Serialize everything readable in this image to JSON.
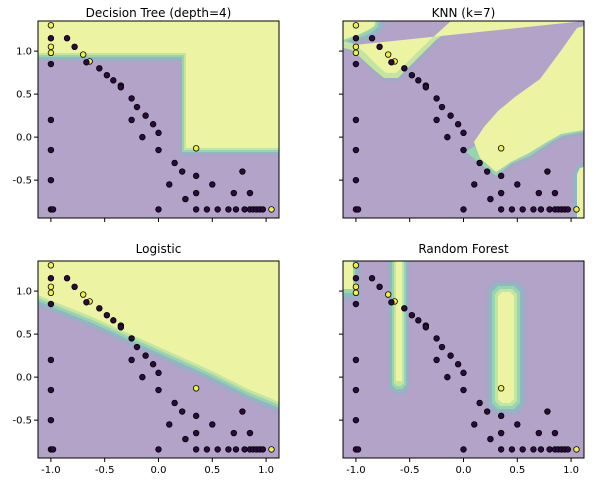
{
  "chart_data": [
    {
      "type": "scatter",
      "title": "Decision Tree (depth=4)",
      "xlim": [
        -1.12,
        1.12
      ],
      "ylim": [
        -0.94,
        1.35
      ],
      "xticks": [
        "-1.0",
        "-0.5",
        "0.0",
        "0.5",
        "1.0"
      ],
      "yticks": [
        "1.0",
        "0.5",
        "0.0",
        "-0.5"
      ],
      "show_xticklabels": false,
      "show_yticklabels": true
    },
    {
      "type": "scatter",
      "title": "KNN (k=7)",
      "xlim": [
        -1.12,
        1.12
      ],
      "ylim": [
        -0.94,
        1.35
      ],
      "xticks": [
        "-1.0",
        "-0.5",
        "0.0",
        "0.5",
        "1.0"
      ],
      "yticks": [
        "1.0",
        "0.5",
        "0.0",
        "-0.5"
      ],
      "show_xticklabels": false,
      "show_yticklabels": false
    },
    {
      "type": "scatter",
      "title": "Logistic",
      "xlim": [
        -1.12,
        1.12
      ],
      "ylim": [
        -0.94,
        1.35
      ],
      "xticks": [
        "-1.0",
        "-0.5",
        "0.0",
        "0.5",
        "1.0"
      ],
      "yticks": [
        "1.0",
        "0.5",
        "0.0",
        "-0.5"
      ],
      "show_xticklabels": true,
      "show_yticklabels": true
    },
    {
      "type": "scatter",
      "title": "Random Forest",
      "xlim": [
        -1.12,
        1.12
      ],
      "ylim": [
        -0.94,
        1.35
      ],
      "xticks": [
        "-1.0",
        "-0.5",
        "0.0",
        "0.5",
        "1.0"
      ],
      "yticks": [
        "1.0",
        "0.5",
        "0.0",
        "-0.5"
      ],
      "show_xticklabels": true,
      "show_yticklabels": false
    }
  ],
  "points": [
    {
      "x": -1.0,
      "y": 1.3,
      "c": 1
    },
    {
      "x": -1.0,
      "y": 1.05,
      "c": 1
    },
    {
      "x": -1.0,
      "y": 0.98,
      "c": 1
    },
    {
      "x": -1.0,
      "y": 1.15,
      "c": 0
    },
    {
      "x": -1.0,
      "y": 0.85,
      "c": 0
    },
    {
      "x": -1.0,
      "y": 0.2,
      "c": 0
    },
    {
      "x": -1.0,
      "y": -0.15,
      "c": 0
    },
    {
      "x": -1.0,
      "y": -0.5,
      "c": 0
    },
    {
      "x": -1.0,
      "y": -0.84,
      "c": 0
    },
    {
      "x": -0.98,
      "y": -0.84,
      "c": 0
    },
    {
      "x": -0.85,
      "y": 1.15,
      "c": 0
    },
    {
      "x": -0.78,
      "y": 1.05,
      "c": 0
    },
    {
      "x": -0.7,
      "y": 0.96,
      "c": 1
    },
    {
      "x": -0.64,
      "y": 0.88,
      "c": 1
    },
    {
      "x": -0.67,
      "y": 0.87,
      "c": 0
    },
    {
      "x": -0.55,
      "y": 0.8,
      "c": 0
    },
    {
      "x": -0.48,
      "y": 0.72,
      "c": 0
    },
    {
      "x": -0.42,
      "y": 0.66,
      "c": 0
    },
    {
      "x": -0.35,
      "y": 0.6,
      "c": 0
    },
    {
      "x": -0.35,
      "y": 0.58,
      "c": 0
    },
    {
      "x": -0.25,
      "y": 0.45,
      "c": 0
    },
    {
      "x": -0.2,
      "y": 0.35,
      "c": 0
    },
    {
      "x": -0.12,
      "y": 0.25,
      "c": 0
    },
    {
      "x": -0.25,
      "y": 0.2,
      "c": 0
    },
    {
      "x": -0.05,
      "y": 0.15,
      "c": 0
    },
    {
      "x": 0.0,
      "y": 0.05,
      "c": 0
    },
    {
      "x": 0.0,
      "y": -0.15,
      "c": 0
    },
    {
      "x": -0.15,
      "y": 0.0,
      "c": 0
    },
    {
      "x": 0.15,
      "y": -0.3,
      "c": 0
    },
    {
      "x": 0.1,
      "y": -0.55,
      "c": 0
    },
    {
      "x": 0.35,
      "y": -0.13,
      "c": 1
    },
    {
      "x": 0.22,
      "y": -0.4,
      "c": 0
    },
    {
      "x": 0.35,
      "y": -0.45,
      "c": 0
    },
    {
      "x": 0.35,
      "y": -0.65,
      "c": 0
    },
    {
      "x": 0.5,
      "y": -0.55,
      "c": 0
    },
    {
      "x": 0.25,
      "y": -0.72,
      "c": 0
    },
    {
      "x": 0.7,
      "y": -0.65,
      "c": 0
    },
    {
      "x": 0.78,
      "y": -0.4,
      "c": 0
    },
    {
      "x": 0.85,
      "y": -0.65,
      "c": 0
    },
    {
      "x": 0.0,
      "y": -0.84,
      "c": 0
    },
    {
      "x": 0.35,
      "y": -0.84,
      "c": 0
    },
    {
      "x": 0.45,
      "y": -0.84,
      "c": 0
    },
    {
      "x": 0.55,
      "y": -0.84,
      "c": 0
    },
    {
      "x": 0.65,
      "y": -0.84,
      "c": 0
    },
    {
      "x": 0.72,
      "y": -0.84,
      "c": 0
    },
    {
      "x": 0.8,
      "y": -0.84,
      "c": 0
    },
    {
      "x": 0.85,
      "y": -0.84,
      "c": 0
    },
    {
      "x": 0.88,
      "y": -0.84,
      "c": 0
    },
    {
      "x": 0.91,
      "y": -0.84,
      "c": 0
    },
    {
      "x": 0.94,
      "y": -0.84,
      "c": 0
    },
    {
      "x": 0.97,
      "y": -0.84,
      "c": 0
    },
    {
      "x": 1.05,
      "y": -0.84,
      "c": 1
    }
  ],
  "colors": {
    "class0_region": "#b3a3c8",
    "class1_region": "#ecf4a3",
    "boundary_1": "#a5a8c6",
    "boundary_2": "#8fb8c3",
    "boundary_3": "#97d4b1",
    "boundary_4": "#c4e59e",
    "class0_point": "#2d0a3c",
    "class1_point": "#f1ee4a"
  }
}
